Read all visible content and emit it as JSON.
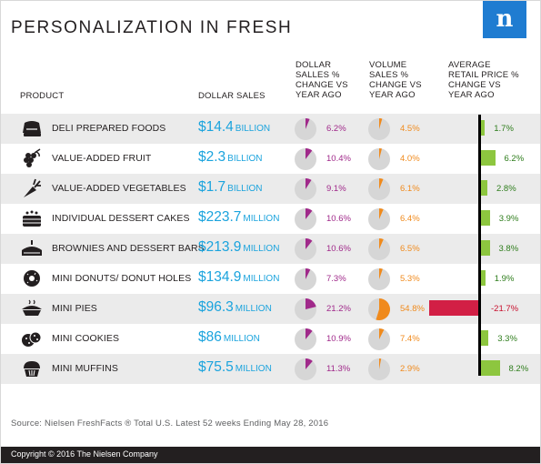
{
  "title": "PERSONALIZATION IN FRESH",
  "logo_letter": "n",
  "headers": {
    "product": "PRODUCT",
    "dollar_sales": "DOLLAR SALES",
    "dollar_change": [
      "DOLLAR",
      "SALLES %",
      "CHANGE VS",
      "YEAR AGO"
    ],
    "volume_change": [
      "VOLUME",
      "SALES %",
      "CHANGE VS",
      "YEAR AGO"
    ],
    "avg_price": [
      "AVERAGE",
      "RETAIL PRICE %",
      "CHANGE VS",
      "YEAR AGO"
    ]
  },
  "colors": {
    "dollar": "#a0298a",
    "volume": "#f08a1c",
    "positive": "#8dc63f",
    "negative": "#d21f45",
    "sales_text": "#1aa3dd",
    "pie_base": "#d6d6d6"
  },
  "chart_data": {
    "type": "table",
    "rows": [
      {
        "product": "DELI PREPARED FOODS",
        "icon": "sandwich-icon",
        "sales": "$14.4",
        "unit": "BILLION",
        "dollar_pct": "6.2%",
        "dollar": 6.2,
        "volume_pct": "4.5%",
        "volume": 4.5,
        "price_pct": "1.7%",
        "price": 1.7
      },
      {
        "product": "VALUE-ADDED FRUIT",
        "icon": "grapes-icon",
        "sales": "$2.3",
        "unit": "BILLION",
        "dollar_pct": "10.4%",
        "dollar": 10.4,
        "volume_pct": "4.0%",
        "volume": 4.0,
        "price_pct": "6.2%",
        "price": 6.2
      },
      {
        "product": "VALUE-ADDED VEGETABLES",
        "icon": "carrot-icon",
        "sales": "$1.7",
        "unit": "BILLION",
        "dollar_pct": "9.1%",
        "dollar": 9.1,
        "volume_pct": "6.1%",
        "volume": 6.1,
        "price_pct": "2.8%",
        "price": 2.8
      },
      {
        "product": "INDIVIDUAL DESSERT CAKES",
        "icon": "cake-icon",
        "sales": "$223.7",
        "unit": "MILLION",
        "dollar_pct": "10.6%",
        "dollar": 10.6,
        "volume_pct": "6.4%",
        "volume": 6.4,
        "price_pct": "3.9%",
        "price": 3.9
      },
      {
        "product": "BROWNIES AND DESSERT BARS",
        "icon": "dessert-bar-icon",
        "sales": "$213.9",
        "unit": "MILLION",
        "dollar_pct": "10.6%",
        "dollar": 10.6,
        "volume_pct": "6.5%",
        "volume": 6.5,
        "price_pct": "3.8%",
        "price": 3.8
      },
      {
        "product": "MINI DONUTS/ DONUT HOLES",
        "icon": "donut-icon",
        "sales": "$134.9",
        "unit": "MILLION",
        "dollar_pct": "7.3%",
        "dollar": 7.3,
        "volume_pct": "5.3%",
        "volume": 5.3,
        "price_pct": "1.9%",
        "price": 1.9
      },
      {
        "product": "MINI PIES",
        "icon": "pie-icon",
        "sales": "$96.3",
        "unit": "MILLION",
        "dollar_pct": "21.2%",
        "dollar": 21.2,
        "volume_pct": "54.8%",
        "volume": 54.8,
        "price_pct": "-21.7%",
        "price": -21.7
      },
      {
        "product": "MINI COOKIES",
        "icon": "cookies-icon",
        "sales": "$86",
        "unit": "MILLION",
        "dollar_pct": "10.9%",
        "dollar": 10.9,
        "volume_pct": "7.4%",
        "volume": 7.4,
        "price_pct": "3.3%",
        "price": 3.3
      },
      {
        "product": "MINI MUFFINS",
        "icon": "muffin-icon",
        "sales": "$75.5",
        "unit": "MILLION",
        "dollar_pct": "11.3%",
        "dollar": 11.3,
        "volume_pct": "2.9%",
        "volume": 2.9,
        "price_pct": "8.2%",
        "price": 8.2
      }
    ]
  },
  "source": "Source: Nielsen FreshFacts ® Total U.S. Latest 52 weeks Ending May 28, 2016",
  "copyright": "Copyright © 2016 The Nielsen Company"
}
